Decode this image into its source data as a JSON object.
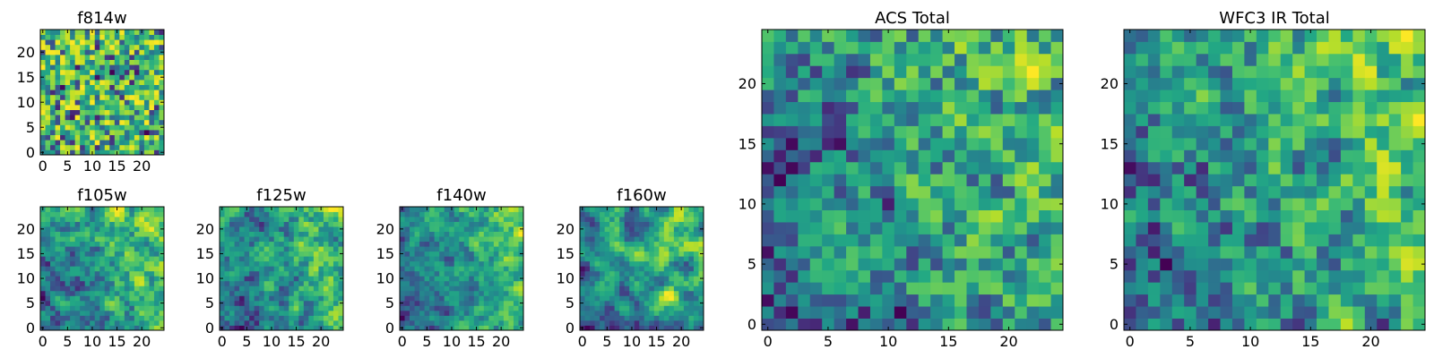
{
  "figure": {
    "colormap": "viridis",
    "background": "#ffffff"
  },
  "chart_data": [
    {
      "type": "heatmap",
      "title": "f814w",
      "rows": 25,
      "cols": 25,
      "seed": 11,
      "smooth": 0,
      "xticks": [
        0,
        5,
        10,
        15,
        20
      ],
      "yticks": [
        0,
        5,
        10,
        15,
        20
      ],
      "xlim": [
        -0.5,
        24.5
      ],
      "ylim": [
        -0.5,
        24.5
      ],
      "xlabel": "",
      "ylabel": "",
      "grid": false,
      "origin": "lower"
    },
    {
      "type": "heatmap",
      "title": "f105w",
      "rows": 25,
      "cols": 25,
      "seed": 23,
      "smooth": 2,
      "xticks": [
        0,
        5,
        10,
        15,
        20
      ],
      "yticks": [
        0,
        5,
        10,
        15,
        20
      ],
      "xlim": [
        -0.5,
        24.5
      ],
      "ylim": [
        -0.5,
        24.5
      ],
      "xlabel": "",
      "ylabel": "",
      "grid": false,
      "origin": "lower"
    },
    {
      "type": "heatmap",
      "title": "f125w",
      "rows": 25,
      "cols": 25,
      "seed": 37,
      "smooth": 2,
      "xticks": [
        0,
        5,
        10,
        15,
        20
      ],
      "yticks": [
        0,
        5,
        10,
        15,
        20
      ],
      "xlim": [
        -0.5,
        24.5
      ],
      "ylim": [
        -0.5,
        24.5
      ],
      "xlabel": "",
      "ylabel": "",
      "grid": false,
      "origin": "lower"
    },
    {
      "type": "heatmap",
      "title": "f140w",
      "rows": 25,
      "cols": 25,
      "seed": 41,
      "smooth": 2,
      "xticks": [
        0,
        5,
        10,
        15,
        20
      ],
      "yticks": [
        0,
        5,
        10,
        15,
        20
      ],
      "xlim": [
        -0.5,
        24.5
      ],
      "ylim": [
        -0.5,
        24.5
      ],
      "xlabel": "",
      "ylabel": "",
      "grid": false,
      "origin": "lower"
    },
    {
      "type": "heatmap",
      "title": "f160w",
      "rows": 25,
      "cols": 25,
      "seed": 53,
      "smooth": 3,
      "xticks": [
        0,
        5,
        10,
        15,
        20
      ],
      "yticks": [
        0,
        5,
        10,
        15,
        20
      ],
      "xlim": [
        -0.5,
        24.5
      ],
      "ylim": [
        -0.5,
        24.5
      ],
      "xlabel": "",
      "ylabel": "",
      "grid": false,
      "origin": "lower"
    },
    {
      "type": "heatmap",
      "title": "ACS Total",
      "rows": 25,
      "cols": 25,
      "seed": 67,
      "smooth": 1,
      "xticks": [
        0,
        5,
        10,
        15,
        20
      ],
      "yticks": [
        0,
        5,
        10,
        15,
        20
      ],
      "xlim": [
        -0.5,
        24.5
      ],
      "ylim": [
        -0.5,
        24.5
      ],
      "xlabel": "",
      "ylabel": "",
      "grid": false,
      "origin": "lower"
    },
    {
      "type": "heatmap",
      "title": "WFC3 IR Total",
      "rows": 25,
      "cols": 25,
      "seed": 79,
      "smooth": 1,
      "xticks": [
        0,
        5,
        10,
        15,
        20
      ],
      "yticks": [
        0,
        5,
        10,
        15,
        20
      ],
      "xlim": [
        -0.5,
        24.5
      ],
      "ylim": [
        -0.5,
        24.5
      ],
      "xlabel": "",
      "ylabel": "",
      "grid": false,
      "origin": "lower"
    }
  ]
}
